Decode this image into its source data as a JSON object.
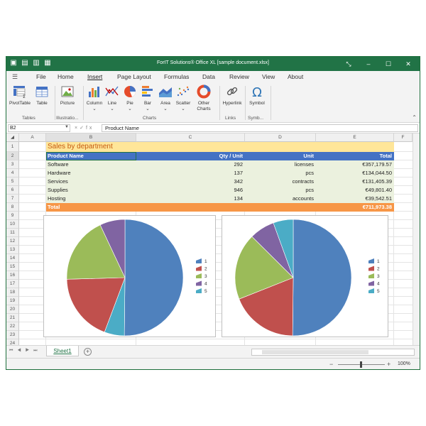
{
  "window": {
    "title": "ForIT Solutions® Office XL [sample document.xlsx]",
    "quick_access": [
      "save-icon",
      "save-as-icon",
      "open-icon",
      "undo-icon"
    ],
    "controls": [
      "⤡",
      "–",
      "☐",
      "✕"
    ]
  },
  "menu": {
    "tabs": [
      {
        "label": "File"
      },
      {
        "label": "Home"
      },
      {
        "label": "Insert",
        "active": true
      },
      {
        "label": "Page Layout"
      },
      {
        "label": "Formulas"
      },
      {
        "label": "Data"
      },
      {
        "label": "Review"
      },
      {
        "label": "View"
      },
      {
        "label": "About"
      }
    ]
  },
  "ribbon": {
    "groups": [
      {
        "label": "Tables",
        "buttons": [
          {
            "label": "PivotTable"
          },
          {
            "label": "Table"
          }
        ]
      },
      {
        "label": "Illustratio...",
        "buttons": [
          {
            "label": "Picture"
          }
        ]
      },
      {
        "label": "Charts",
        "buttons": [
          {
            "label": "Column"
          },
          {
            "label": "Line"
          },
          {
            "label": "Pie"
          },
          {
            "label": "Bar"
          },
          {
            "label": "Area"
          },
          {
            "label": "Scatter"
          },
          {
            "label": "Other Charts"
          }
        ]
      },
      {
        "label": "Links",
        "buttons": [
          {
            "label": "Hyperlink"
          }
        ]
      },
      {
        "label": "Symb...",
        "buttons": [
          {
            "label": "Symbol"
          }
        ]
      }
    ],
    "dropdown_marker": "⌄"
  },
  "formula_bar": {
    "cell_ref": "B2",
    "fx_label": "fx",
    "value": "Product Name"
  },
  "grid": {
    "columns": [
      "A",
      "B",
      "C",
      "D",
      "E",
      "F"
    ],
    "rows": [
      "1",
      "2",
      "3",
      "4",
      "5",
      "6",
      "7",
      "8",
      "9",
      "10",
      "11",
      "12",
      "13",
      "14",
      "15",
      "16",
      "17",
      "18",
      "19",
      "20",
      "21",
      "22",
      "23",
      "24"
    ]
  },
  "sheet": {
    "title": "Sales by department",
    "headers": [
      "Product Name",
      "Qty / Unit",
      "Unit",
      "Total"
    ],
    "rows": [
      [
        "Software",
        "292",
        "licenses",
        "€357,179.57"
      ],
      [
        "Hardware",
        "137",
        "pcs",
        "€134,044.50"
      ],
      [
        "Services",
        "342",
        "contracts",
        "€131,405.39"
      ],
      [
        "Supplies",
        "946",
        "pcs",
        "€49,801.40"
      ],
      [
        "Hosting",
        "134",
        "accounts",
        "€39,542.51"
      ]
    ],
    "total_label": "Total",
    "total_value": "€711,973.38"
  },
  "colors": {
    "accent": "#217346",
    "title_fill": "#ffe699",
    "title_text": "#c55a11",
    "header_fill": "#4472c4",
    "data_fill": "#ebf1de",
    "total_fill": "#f79646"
  },
  "chart_data": [
    {
      "type": "pie",
      "title": "",
      "categories": [
        "1",
        "2",
        "3",
        "4",
        "5"
      ],
      "values": [
        357179.57,
        134044.5,
        131405.39,
        49801.4,
        39542.51
      ],
      "slice_order": [
        0,
        4,
        1,
        2,
        3
      ],
      "colors": [
        "#4f81bd",
        "#c0504d",
        "#9bbb59",
        "#8064a2",
        "#4bacc6"
      ],
      "legend": "right"
    },
    {
      "type": "pie",
      "title": "",
      "categories": [
        "1",
        "2",
        "3",
        "4",
        "5"
      ],
      "values": [
        357179.57,
        134044.5,
        131405.39,
        49801.4,
        39542.51
      ],
      "colors": [
        "#4f81bd",
        "#c0504d",
        "#9bbb59",
        "#8064a2",
        "#4bacc6"
      ],
      "legend": "right"
    }
  ],
  "sheet_tabs": [
    {
      "label": "Sheet1",
      "active": true
    }
  ],
  "status": {
    "zoom_label": "100%",
    "zoom_level": 0.5
  }
}
